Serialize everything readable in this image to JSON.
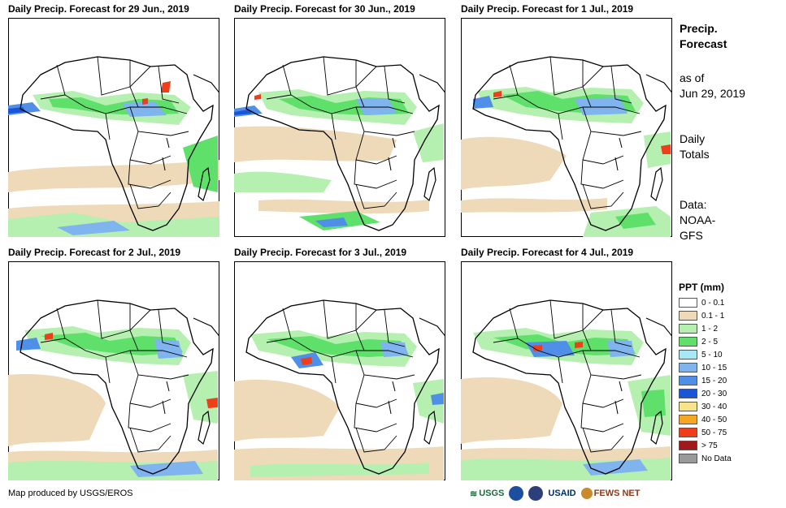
{
  "panels": [
    {
      "title": "Daily Precip. Forecast for 29 Jun., 2019"
    },
    {
      "title": "Daily Precip. Forecast for 30 Jun., 2019"
    },
    {
      "title": "Daily Precip. Forecast for 1 Jul., 2019"
    },
    {
      "title": "Daily Precip. Forecast for 2 Jul., 2019"
    },
    {
      "title": "Daily Precip. Forecast for 3 Jul., 2019"
    },
    {
      "title": "Daily Precip. Forecast for 4 Jul., 2019"
    }
  ],
  "sidebar": {
    "title_line1": "Precip.",
    "title_line2": "Forecast",
    "asof_line1": "as of",
    "asof_line2": "Jun 29, 2019",
    "daily_line1": "Daily",
    "daily_line2": "Totals",
    "data_line1": "Data:",
    "data_line2": "NOAA-",
    "data_line3": "GFS"
  },
  "legend": {
    "title": "PPT (mm)",
    "items": [
      {
        "label": "0 - 0.1",
        "color": "#ffffff"
      },
      {
        "label": "0.1 - 1",
        "color": "#eed9b8"
      },
      {
        "label": "1 - 2",
        "color": "#b5f0b0"
      },
      {
        "label": "2 - 5",
        "color": "#5ee06a"
      },
      {
        "label": "5 - 10",
        "color": "#a8e8f5"
      },
      {
        "label": "10 - 15",
        "color": "#7fb4ee"
      },
      {
        "label": "15 - 20",
        "color": "#4f8fe8"
      },
      {
        "label": "20 - 30",
        "color": "#1a55d6"
      },
      {
        "label": "30 - 40",
        "color": "#f7e48a"
      },
      {
        "label": "40 - 50",
        "color": "#f5a623"
      },
      {
        "label": "50 - 75",
        "color": "#ef3e1a"
      },
      {
        "label": "> 75",
        "color": "#a01a1a"
      },
      {
        "label": "No Data",
        "color": "#9a9a9a"
      }
    ]
  },
  "footer": {
    "credit": "Map produced by USGS/EROS"
  },
  "logos": {
    "usgs": "USGS",
    "usaid": "USAID",
    "fews": "FEWS NET"
  }
}
